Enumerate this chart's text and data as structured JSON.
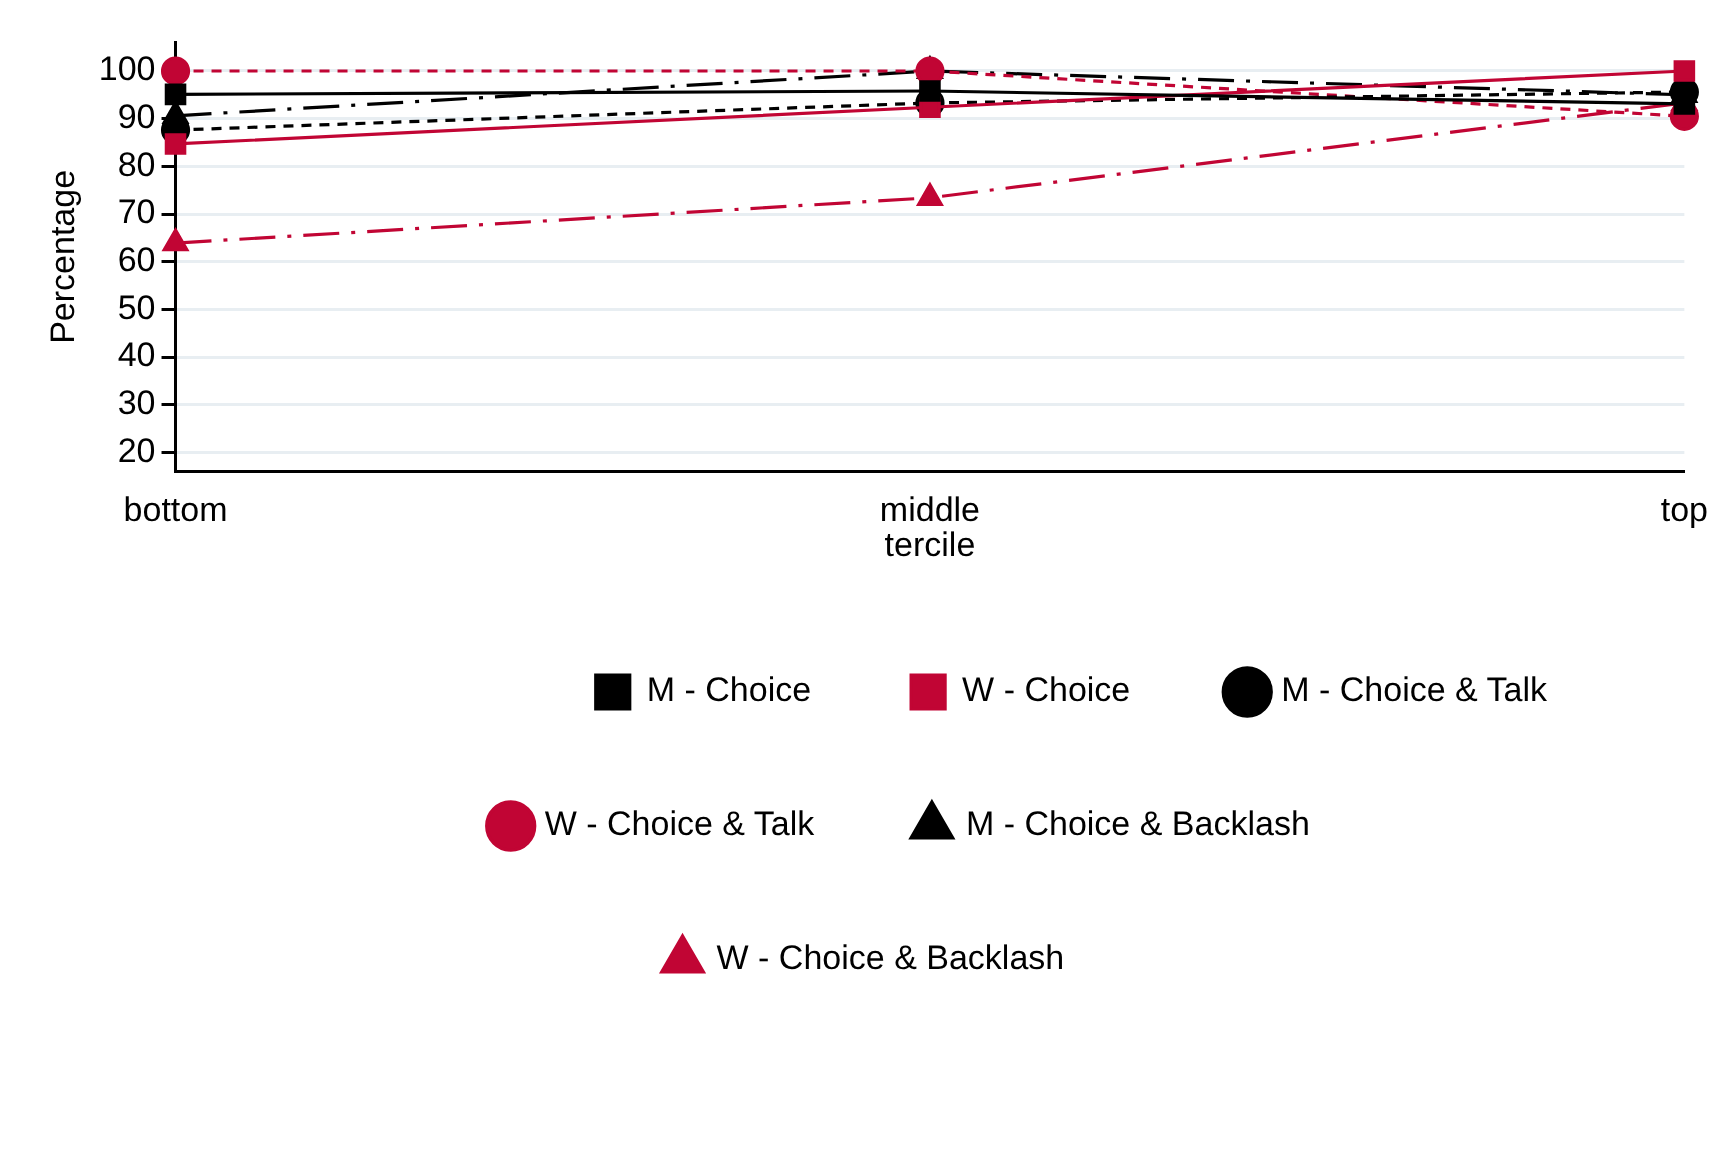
{
  "chart_data": {
    "type": "line",
    "xlabel": "tercile",
    "ylabel": "Percentage",
    "categories": [
      "bottom",
      "middle",
      "top"
    ],
    "ylim": [
      16,
      106
    ],
    "yticks": [
      20,
      30,
      40,
      50,
      60,
      70,
      80,
      90,
      100
    ],
    "grid": "y",
    "legend": "bottom",
    "series": [
      {
        "name": "M - Choice",
        "color": "#000000",
        "marker": "square",
        "line_style": "solid",
        "values": [
          95.1,
          95.8,
          93.1
        ]
      },
      {
        "name": "W - Choice",
        "color": "#c10534",
        "marker": "square",
        "line_style": "solid",
        "values": [
          84.7,
          92.4,
          100
        ]
      },
      {
        "name": "M - Choice & Talk",
        "color": "#000000",
        "marker": "circle",
        "line_style": "dashed",
        "values": [
          87.6,
          93.3,
          95.6
        ]
      },
      {
        "name": "W - Choice & Talk",
        "color": "#c10534",
        "marker": "circle",
        "line_style": "dashed",
        "values": [
          100,
          100,
          90.5
        ]
      },
      {
        "name": "M - Choice & Backlash",
        "color": "#000000",
        "marker": "triangle",
        "line_style": "dashdot",
        "values": [
          90.6,
          100,
          95
        ]
      },
      {
        "name": "W - Choice & Backlash",
        "color": "#c10534",
        "marker": "triangle",
        "line_style": "dashdot",
        "values": [
          63.9,
          73.4,
          93.3
        ]
      }
    ]
  }
}
